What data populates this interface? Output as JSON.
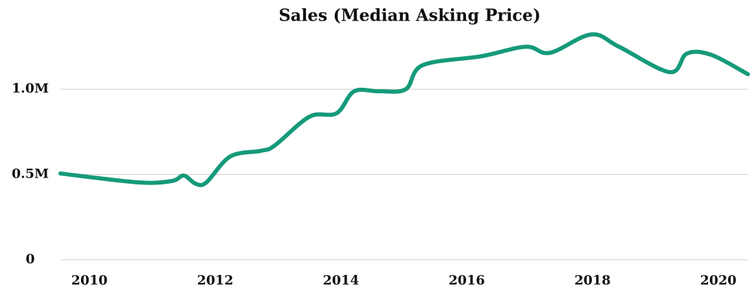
{
  "chart_data": {
    "type": "line",
    "title": "Sales (Median Asking Price)",
    "x": [
      2009.54,
      2010.77,
      2011.31,
      2011.5,
      2011.69,
      2011.86,
      2012.24,
      2012.73,
      2012.95,
      2013.5,
      2013.93,
      2014.21,
      2014.6,
      2015.03,
      2015.3,
      2016.23,
      2016.94,
      2017.32,
      2017.98,
      2018.42,
      2019.23,
      2019.5,
      2019.89,
      2020.47
    ],
    "series": [
      {
        "name": "Median Asking Price",
        "color": "#159a7a",
        "values": [
          506000,
          454000,
          462000,
          494000,
          446000,
          454000,
          606000,
          639000,
          671000,
          839000,
          859000,
          988000,
          988000,
          1000000,
          1141000,
          1193000,
          1249000,
          1213000,
          1321000,
          1249000,
          1100000,
          1209000,
          1201000,
          1088000
        ]
      }
    ],
    "xlim": [
      2009.54,
      2020.47
    ],
    "xticks": [
      2010,
      2012,
      2014,
      2016,
      2018,
      2020
    ],
    "ylim": [
      0,
      1350000
    ],
    "yticks": [
      0,
      {
        "value": 500000,
        "label": "0.5M"
      },
      {
        "value": 1000000,
        "label": "1.0M"
      }
    ],
    "grid": true
  }
}
